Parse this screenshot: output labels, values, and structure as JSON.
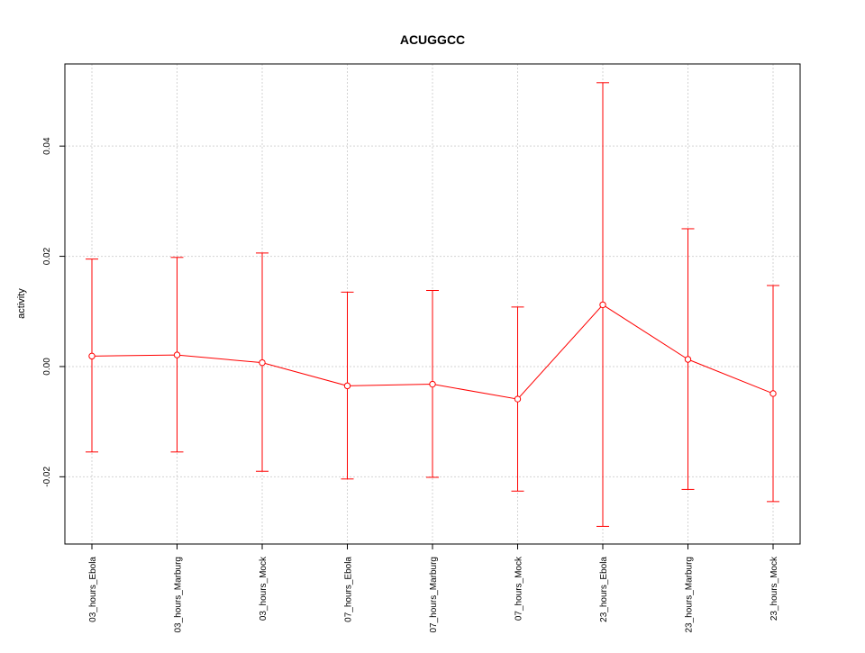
{
  "chart_data": {
    "type": "line",
    "title": "ACUGGCC",
    "xlabel": "",
    "ylabel": "activity",
    "categories": [
      "03_hours_Ebola",
      "03_hours_Marburg",
      "03_hours_Mock",
      "07_hours_Ebola",
      "07_hours_Marburg",
      "07_hours_Mock",
      "23_hours_Ebola",
      "23_hours_Marburg",
      "23_hours_Mock"
    ],
    "series": [
      {
        "values": [
          0.0019,
          0.0021,
          0.0007,
          -0.0035,
          -0.0032,
          -0.0059,
          0.0112,
          0.0013,
          -0.0049
        ],
        "lower": [
          -0.0155,
          -0.0155,
          -0.019,
          -0.0204,
          -0.0201,
          -0.0226,
          -0.029,
          -0.0223,
          -0.0245
        ],
        "upper": [
          0.0195,
          0.0198,
          0.0206,
          0.0135,
          0.0138,
          0.0108,
          0.0515,
          0.025,
          0.0147
        ],
        "color": "#ff0000"
      }
    ],
    "ylim": [
      -0.0322,
      0.0549
    ],
    "yticks": [
      -0.02,
      0.0,
      0.02,
      0.04
    ],
    "ytick_labels": [
      "-0.02",
      "0.00",
      "0.02",
      "0.04"
    ],
    "grid": true,
    "grid_color": "#d3d3d3"
  }
}
